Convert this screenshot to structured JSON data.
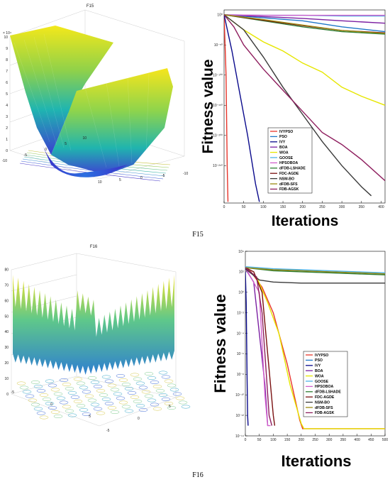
{
  "captions": {
    "top": "F15",
    "bottom": "F16"
  },
  "surfaces": {
    "f15": {
      "title": "F15",
      "z_multiplier": "× 10⁴",
      "z_ticks": [
        "0",
        "1",
        "2",
        "3",
        "4",
        "5",
        "6",
        "7",
        "8",
        "9",
        "10"
      ],
      "x_ticks": [
        "-10",
        "-5",
        "0",
        "5",
        "10"
      ],
      "y_ticks": [
        "-10",
        "-5",
        "0",
        "5",
        "10"
      ]
    },
    "f16": {
      "title": "F16",
      "z_ticks": [
        "0",
        "10",
        "20",
        "30",
        "40",
        "50",
        "60",
        "70",
        "80"
      ],
      "x_ticks": [
        "-5",
        "0",
        "5"
      ],
      "y_ticks": [
        "-5",
        "0",
        "5"
      ]
    }
  },
  "series_colors": {
    "IVYPSO": "#e8352b",
    "PSO": "#1f78c8",
    "IVY": "#0a0a8c",
    "BOA": "#7b1fa2",
    "WOA": "#e6e600",
    "GOOSE": "#4fb4e8",
    "HPSOBOA": "#d15fcc",
    "dFDB-LSHADE": "#2e7d32",
    "FDC-AGDE": "#7a1010",
    "NSM-BO": "#3a3a3a",
    "dFDB-SFS": "#9a8a10",
    "FDB-AGSK": "#8e1e5e"
  },
  "chart_data": [
    {
      "type": "line",
      "title": "",
      "xlabel": "Iterations",
      "ylabel": "Fitness value",
      "yscale": "log",
      "xlim": [
        0,
        410
      ],
      "ylim_exponent": [
        -300,
        10
      ],
      "y_tick_labels": [
        "10⁰",
        "10⁻⁵⁰",
        "10⁻¹⁰⁰",
        "10⁻¹⁵⁰",
        "10⁻²⁰⁰",
        "10⁻²⁵⁰"
      ],
      "x_tick_labels": [
        "0",
        "50",
        "100",
        "150",
        "200",
        "250",
        "300",
        "350",
        "400"
      ],
      "legend_position": "lower-left",
      "series": [
        {
          "name": "IVYPSO",
          "x": [
            0,
            5,
            8,
            10
          ],
          "y_exp": [
            0,
            -100,
            -250,
            -310
          ]
        },
        {
          "name": "PSO",
          "x": [
            0,
            100,
            200,
            300,
            410
          ],
          "y_exp": [
            0,
            -5,
            -10,
            -20,
            -28
          ]
        },
        {
          "name": "IVY",
          "x": [
            0,
            20,
            40,
            60,
            80,
            90
          ],
          "y_exp": [
            0,
            -60,
            -130,
            -200,
            -280,
            -310
          ]
        },
        {
          "name": "BOA",
          "x": [
            0,
            100,
            200,
            300,
            410
          ],
          "y_exp": [
            0,
            -3,
            -6,
            -10,
            -14
          ]
        },
        {
          "name": "WOA",
          "x": [
            0,
            50,
            100,
            150,
            200,
            250,
            300,
            350,
            410
          ],
          "y_exp": [
            0,
            -25,
            -45,
            -60,
            -80,
            -95,
            -120,
            -135,
            -150
          ]
        },
        {
          "name": "GOOSE",
          "x": [
            0,
            100,
            200,
            300,
            410
          ],
          "y_exp": [
            0,
            -1,
            -1,
            -2,
            -2
          ]
        },
        {
          "name": "HPSOBOA",
          "x": [
            0,
            100,
            200,
            300,
            410
          ],
          "y_exp": [
            0,
            -1,
            -1,
            -1,
            -1
          ]
        },
        {
          "name": "dFDB-LSHADE",
          "x": [
            0,
            100,
            200,
            300,
            410
          ],
          "y_exp": [
            0,
            -10,
            -20,
            -28,
            -32
          ]
        },
        {
          "name": "FDC-AGDE",
          "x": [
            0,
            100,
            200,
            300,
            410
          ],
          "y_exp": [
            0,
            -9,
            -18,
            -26,
            -30
          ]
        },
        {
          "name": "NSM-BO",
          "x": [
            0,
            50,
            100,
            150,
            200,
            250,
            300,
            350,
            375
          ],
          "y_exp": [
            0,
            -25,
            -70,
            -120,
            -165,
            -210,
            -250,
            -285,
            -300
          ]
        },
        {
          "name": "dFDB-SFS",
          "x": [
            0,
            100,
            200,
            300,
            410
          ],
          "y_exp": [
            0,
            -8,
            -17,
            -26,
            -31
          ]
        },
        {
          "name": "FDB-AGSK",
          "x": [
            0,
            25,
            50,
            100,
            150,
            200,
            250,
            300,
            350,
            410
          ],
          "y_exp": [
            0,
            -20,
            -50,
            -90,
            -125,
            -160,
            -195,
            -215,
            -240,
            -275
          ]
        }
      ]
    },
    {
      "type": "line",
      "title": "",
      "xlabel": "Iterations",
      "ylabel": "Fitness value",
      "yscale": "log",
      "xlim": [
        0,
        500
      ],
      "ylim_exponent": [
        -14,
        4
      ],
      "y_tick_labels": [
        "10⁴",
        "10²",
        "10⁰",
        "10⁻²",
        "10⁻⁴",
        "10⁻⁶",
        "10⁻⁸",
        "10⁻¹⁰",
        "10⁻¹²",
        "10⁻¹⁴"
      ],
      "x_tick_labels": [
        "0",
        "50",
        "100",
        "150",
        "200",
        "250",
        "300",
        "350",
        "400",
        "450",
        "500"
      ],
      "legend_position": "lower-right",
      "series": [
        {
          "name": "IVYPSO",
          "x": [
            0,
            20,
            60,
            100,
            150,
            195,
            205,
            500
          ],
          "y_exp": [
            2.3,
            2.0,
            0.5,
            -2,
            -7,
            -12.5,
            -13.3,
            -13.3
          ]
        },
        {
          "name": "PSO",
          "x": [
            0,
            50,
            100,
            200,
            300,
            400,
            500
          ],
          "y_exp": [
            2.4,
            2.3,
            2.2,
            2.1,
            2.0,
            1.9,
            1.8
          ]
        },
        {
          "name": "IVY",
          "x": [
            0,
            3,
            6,
            8,
            10
          ],
          "y_exp": [
            2.0,
            -1,
            -8,
            -12,
            -13
          ]
        },
        {
          "name": "BOA",
          "x": [
            0,
            30,
            50,
            70,
            80
          ],
          "y_exp": [
            2.3,
            1.0,
            -4,
            -9,
            -13
          ]
        },
        {
          "name": "WOA",
          "x": [
            0,
            40,
            80,
            120,
            160,
            200,
            210,
            500
          ],
          "y_exp": [
            2.4,
            1.5,
            -1,
            -4,
            -9,
            -12.8,
            -13.3,
            -13.3
          ]
        },
        {
          "name": "GOOSE",
          "x": [
            0,
            100,
            200,
            300,
            400,
            500
          ],
          "y_exp": [
            2.5,
            2.3,
            2.2,
            2.1,
            2.0,
            1.9
          ]
        },
        {
          "name": "HPSOBOA",
          "x": [
            0,
            50,
            60,
            70,
            80,
            90
          ],
          "y_exp": [
            2.4,
            0,
            -5,
            -10,
            -13,
            -13
          ]
        },
        {
          "name": "dFDB-LSHADE",
          "x": [
            0,
            100,
            200,
            300,
            400,
            500
          ],
          "y_exp": [
            2.4,
            2.1,
            2.0,
            1.9,
            1.8,
            1.7
          ]
        },
        {
          "name": "FDC-AGDE",
          "x": [
            0,
            30,
            60,
            80,
            100,
            105
          ],
          "y_exp": [
            2.4,
            2.0,
            0,
            -6,
            -12,
            -13
          ]
        },
        {
          "name": "NSM-BO",
          "x": [
            0,
            50,
            100,
            200,
            300,
            400,
            500
          ],
          "y_exp": [
            2.3,
            1.2,
            1.0,
            0.9,
            0.9,
            0.9,
            0.9
          ]
        },
        {
          "name": "dFDB-SFS",
          "x": [
            0,
            100,
            200,
            300,
            400,
            500
          ],
          "y_exp": [
            2.4,
            2.2,
            2.1,
            2.0,
            1.9,
            1.8
          ]
        },
        {
          "name": "FDB-AGSK",
          "x": [
            0,
            40,
            60,
            75,
            85,
            95
          ],
          "y_exp": [
            2.4,
            1.5,
            -2,
            -8,
            -12,
            -13
          ]
        }
      ]
    }
  ]
}
